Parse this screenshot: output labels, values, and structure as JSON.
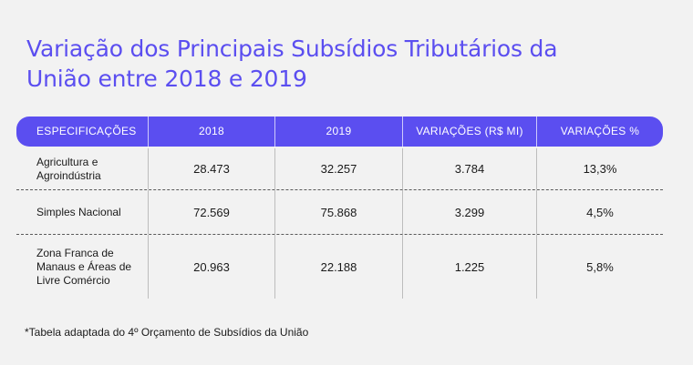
{
  "title": "Variação dos Principais Subsídios Tributários da União entre 2018 e 2019",
  "table": {
    "headers": [
      "ESPECIFICAÇÕES",
      "2018",
      "2019",
      "VARIAÇÕES (R$ MI)",
      "VARIAÇÕES %"
    ],
    "rows": [
      [
        "Agricultura e Agroindústria",
        "28.473",
        "32.257",
        "3.784",
        "13,3%"
      ],
      [
        "Simples Nacional",
        "72.569",
        "75.868",
        "3.299",
        "4,5%"
      ],
      [
        "Zona Franca de Manaus e Áreas de Livre Comércio",
        "20.963",
        "22.188",
        "1.225",
        "5,8%"
      ]
    ]
  },
  "footnote": "*Tabela adaptada do 4º Orçamento de Subsídios da União",
  "colors": {
    "accent": "#5b4ef0",
    "background": "#f2f2f2"
  }
}
